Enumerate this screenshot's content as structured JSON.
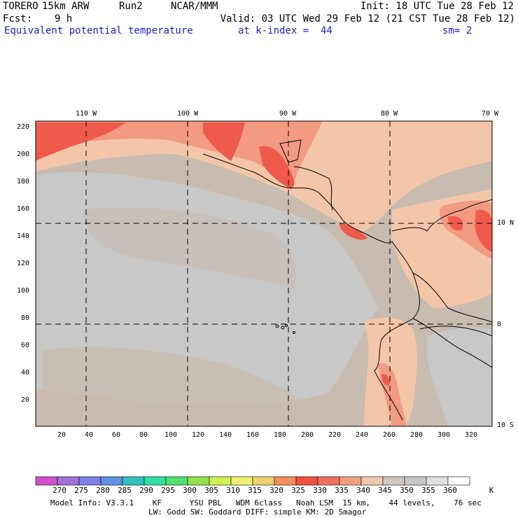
{
  "header": {
    "model": "TORERO",
    "resolution": "15km ARW",
    "run": "Run2",
    "center": "NCAR/MMM",
    "init": "Init: 18 UTC Tue 28 Feb 12",
    "fcst_label": "Fcst:",
    "fcst_value": "9 h",
    "valid": "Valid: 03 UTC Wed 29 Feb 12 (21 CST Tue 28 Feb 12)",
    "field": "Equivalent potential temperature",
    "level": "at k-index =  44",
    "smoothing": "sm= 2"
  },
  "map": {
    "lon_labels": [
      "110 W",
      "100 W",
      "90 W",
      "80 W",
      "70 W"
    ],
    "lat_labels": [
      "10 N",
      "0",
      "10 S"
    ],
    "y_ticks": [
      "20",
      "40",
      "60",
      "80",
      "100",
      "120",
      "140",
      "160",
      "180",
      "200",
      "220"
    ],
    "x_ticks": [
      "20",
      "40",
      "60",
      "80",
      "100",
      "120",
      "140",
      "160",
      "180",
      "200",
      "220",
      "240",
      "260",
      "280",
      "300",
      "320"
    ],
    "colors": {
      "tan": "#c8bcb0",
      "gray": "#c8c8c8",
      "peach_light": "#f3c6aa",
      "salmon": "#f29a82",
      "red": "#f05a4c",
      "coast": "#000000",
      "grid": "#000000"
    }
  },
  "colorbar": {
    "levels": [
      "270",
      "275",
      "280",
      "285",
      "290",
      "295",
      "300",
      "305",
      "310",
      "315",
      "320",
      "325",
      "330",
      "335",
      "340",
      "345",
      "350",
      "355",
      "360"
    ],
    "unit": "K",
    "colors": [
      "#d050c8",
      "#a070d8",
      "#8080e8",
      "#6090e0",
      "#30c0c0",
      "#30e0a0",
      "#50e070",
      "#90e050",
      "#d0f050",
      "#f0f070",
      "#f0d070",
      "#f09060",
      "#f05040",
      "#f07060",
      "#f0a080",
      "#f0c8b0",
      "#d0c8c0",
      "#c8c8c8",
      "#e0e0e0",
      "#ffffff"
    ]
  },
  "footer": {
    "line1": "Model Info: V3.3.1    KF      YSU PBL   WDM 6class   Noah LSM  15 km,    44 levels,    76 sec",
    "line2": "LW: Godd SW: Goddard DIFF: simple KM: 2D Smagor"
  }
}
